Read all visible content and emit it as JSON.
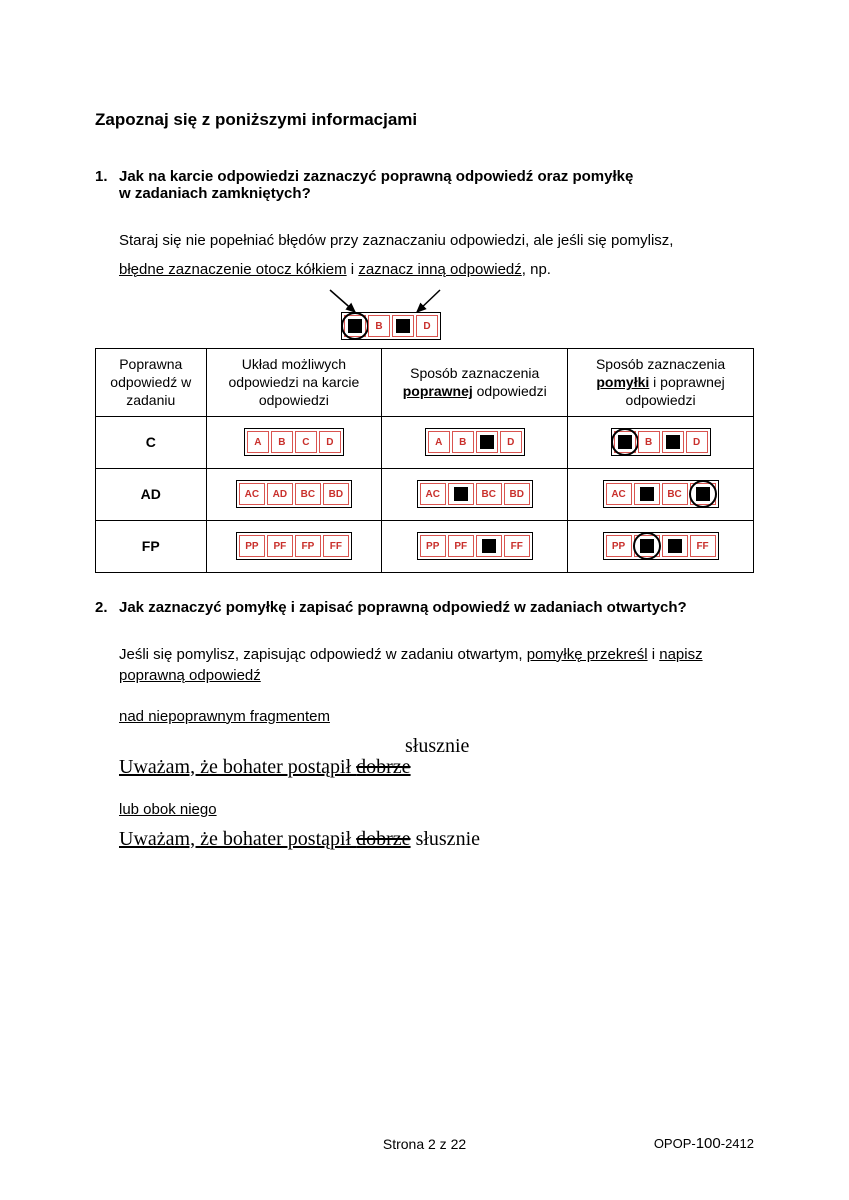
{
  "heading": "Zapoznaj się z poniższymi informacjami",
  "q1": {
    "num": "1.",
    "title_l1": "Jak na karcie odpowiedzi zaznaczyć poprawną odpowiedź oraz pomyłkę",
    "title_l2": "w zadaniach zamkniętych?",
    "para_a": "Staraj się nie popełniać błędów przy zaznaczaniu odpowiedzi, ale jeśli się pomylisz,",
    "para_b1": "błędne zaznaczenie otocz kółkiem",
    "para_b_mid": " i ",
    "para_b2": "zaznacz inną odpowiedź",
    "para_b_end": ", np."
  },
  "example_boxes": [
    "A",
    "B",
    "C",
    "D"
  ],
  "table": {
    "h1": "Poprawna odpowiedź w zadaniu",
    "h2": "Układ możliwych odpowiedzi na karcie odpowiedzi",
    "h3a": "Sposób zaznaczenia",
    "h3b": "poprawnej",
    "h3c": " odpowiedzi",
    "h4a": "Sposób zaznaczenia",
    "h4b": "pomyłki",
    "h4c": " i poprawnej odpowiedzi",
    "rows": [
      {
        "label": "C",
        "layout": [
          {
            "t": "A"
          },
          {
            "t": "B"
          },
          {
            "t": "C"
          },
          {
            "t": "D"
          }
        ],
        "correct": [
          {
            "t": "A"
          },
          {
            "t": "B"
          },
          {
            "f": true
          },
          {
            "t": "D"
          }
        ],
        "mistake": [
          {
            "f": true,
            "c": true
          },
          {
            "t": "B"
          },
          {
            "f": true
          },
          {
            "t": "D"
          }
        ]
      },
      {
        "label": "AD",
        "wide": true,
        "layout": [
          {
            "t": "AC"
          },
          {
            "t": "AD"
          },
          {
            "t": "BC"
          },
          {
            "t": "BD"
          }
        ],
        "correct": [
          {
            "t": "AC"
          },
          {
            "f": true
          },
          {
            "t": "BC"
          },
          {
            "t": "BD"
          }
        ],
        "mistake": [
          {
            "t": "AC"
          },
          {
            "f": true
          },
          {
            "t": "BC"
          },
          {
            "f": true,
            "c": true
          }
        ]
      },
      {
        "label": "FP",
        "wide": true,
        "layout": [
          {
            "t": "PP"
          },
          {
            "t": "PF"
          },
          {
            "t": "FP"
          },
          {
            "t": "FF"
          }
        ],
        "correct": [
          {
            "t": "PP"
          },
          {
            "t": "PF"
          },
          {
            "f": true
          },
          {
            "t": "FF"
          }
        ],
        "mistake": [
          {
            "t": "PP"
          },
          {
            "f": true,
            "c": true
          },
          {
            "f": true
          },
          {
            "t": "FF"
          }
        ]
      }
    ]
  },
  "q2": {
    "num": "2.",
    "title": "Jak zaznaczyć pomyłkę i zapisać poprawną odpowiedź w zadaniach otwartych?",
    "para_a": "Jeśli się pomylisz, zapisując odpowiedź w zadaniu otwartym, ",
    "para_b": "pomyłkę przekreśl",
    "para_mid": " i ",
    "para_c": "napisz poprawną odpowiedź",
    "label_above": "nad niepoprawnym fragmentem",
    "hw_above_word": "słusznie",
    "hw_line_pre": "Uważam, że bohater postąpił ",
    "hw_line_strike": "dobrze",
    "label_beside": "lub obok niego",
    "hw2_pre": "Uważam, że bohater postąpił ",
    "hw2_strike": "dobrze",
    "hw2_after": "  słusznie"
  },
  "footer_center": "Strona 2 z 22",
  "footer_right_a": "OPOP-",
  "footer_right_b": "100",
  "footer_right_c": "-2412",
  "colors": {
    "box_border": "#d9534f",
    "box_text": "#c9302c"
  }
}
